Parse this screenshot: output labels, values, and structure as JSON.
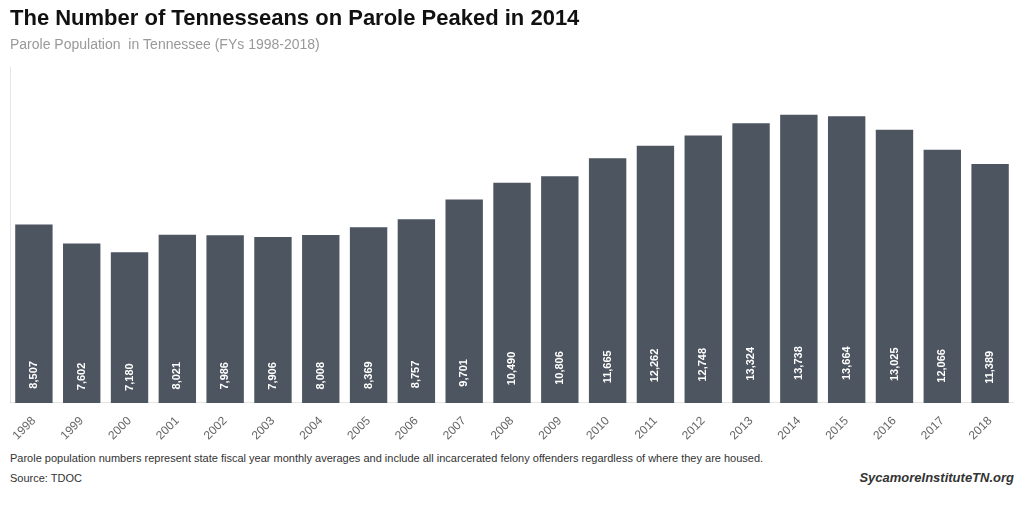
{
  "chart_data": {
    "type": "bar",
    "title": "The Number of Tennesseans on Parole Peaked in 2014",
    "subtitle": "Parole Population  in Tennessee (FYs 1998-2018)",
    "categories": [
      "1998",
      "1999",
      "2000",
      "2001",
      "2002",
      "2003",
      "2004",
      "2005",
      "2006",
      "2007",
      "2008",
      "2009",
      "2010",
      "2011",
      "2012",
      "2013",
      "2014",
      "2015",
      "2016",
      "2017",
      "2018"
    ],
    "values": [
      8507,
      7602,
      7180,
      8021,
      7986,
      7906,
      8008,
      8369,
      8757,
      9701,
      10490,
      10806,
      11665,
      12262,
      12748,
      13324,
      13738,
      13664,
      13025,
      12066,
      11389
    ],
    "value_labels": [
      "8,507",
      "7,602",
      "7,180",
      "8,021",
      "7,986",
      "7,906",
      "8,008",
      "8,369",
      "8,757",
      "9,701",
      "10,490",
      "10,806",
      "11,665",
      "12,262",
      "12,748",
      "13,324",
      "13,738",
      "13,664",
      "13,025",
      "12,066",
      "11,389"
    ],
    "data_labels": true,
    "color": "#4d5560",
    "ylim": [
      0,
      16000
    ],
    "grid": false,
    "tick_labels": "x",
    "annotations": [
      "Parole population numbers represent state fiscal year monthly averages and include all incarcerated felony offenders regardless of where they are housed.",
      "Source: TDOC",
      "SycamoreInstituteTN.org"
    ]
  }
}
